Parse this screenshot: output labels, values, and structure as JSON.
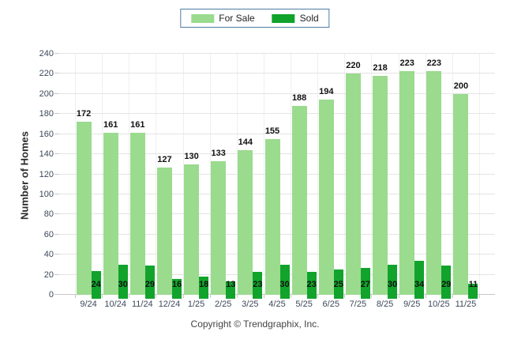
{
  "chart_data": {
    "type": "bar",
    "title": "",
    "xlabel": "",
    "ylabel": "Number of Homes",
    "ylim": [
      0,
      240
    ],
    "ytick_step": 20,
    "grid": true,
    "legend_position": "top-center",
    "categories": [
      "9/24",
      "10/24",
      "11/24",
      "12/24",
      "1/25",
      "2/25",
      "3/25",
      "4/25",
      "5/25",
      "6/25",
      "7/25",
      "8/25",
      "9/25",
      "10/25",
      "11/25"
    ],
    "series": [
      {
        "name": "For Sale",
        "color": "#9ADB8E",
        "values": [
          172,
          161,
          161,
          127,
          130,
          133,
          144,
          155,
          188,
          194,
          220,
          218,
          223,
          223,
          200
        ]
      },
      {
        "name": "Sold",
        "color": "#11A32B",
        "values": [
          24,
          30,
          29,
          16,
          18,
          13,
          23,
          30,
          23,
          25,
          27,
          30,
          34,
          29,
          11
        ]
      }
    ],
    "colors": {
      "legend_border": "#4F7CA4",
      "gridline": "#e4e4e4",
      "axis_line": "#c8c8c8",
      "tick_text": "#3C4858",
      "value_label": "#111111"
    }
  },
  "footer": {
    "copyright": "Copyright © Trendgraphix, Inc."
  }
}
